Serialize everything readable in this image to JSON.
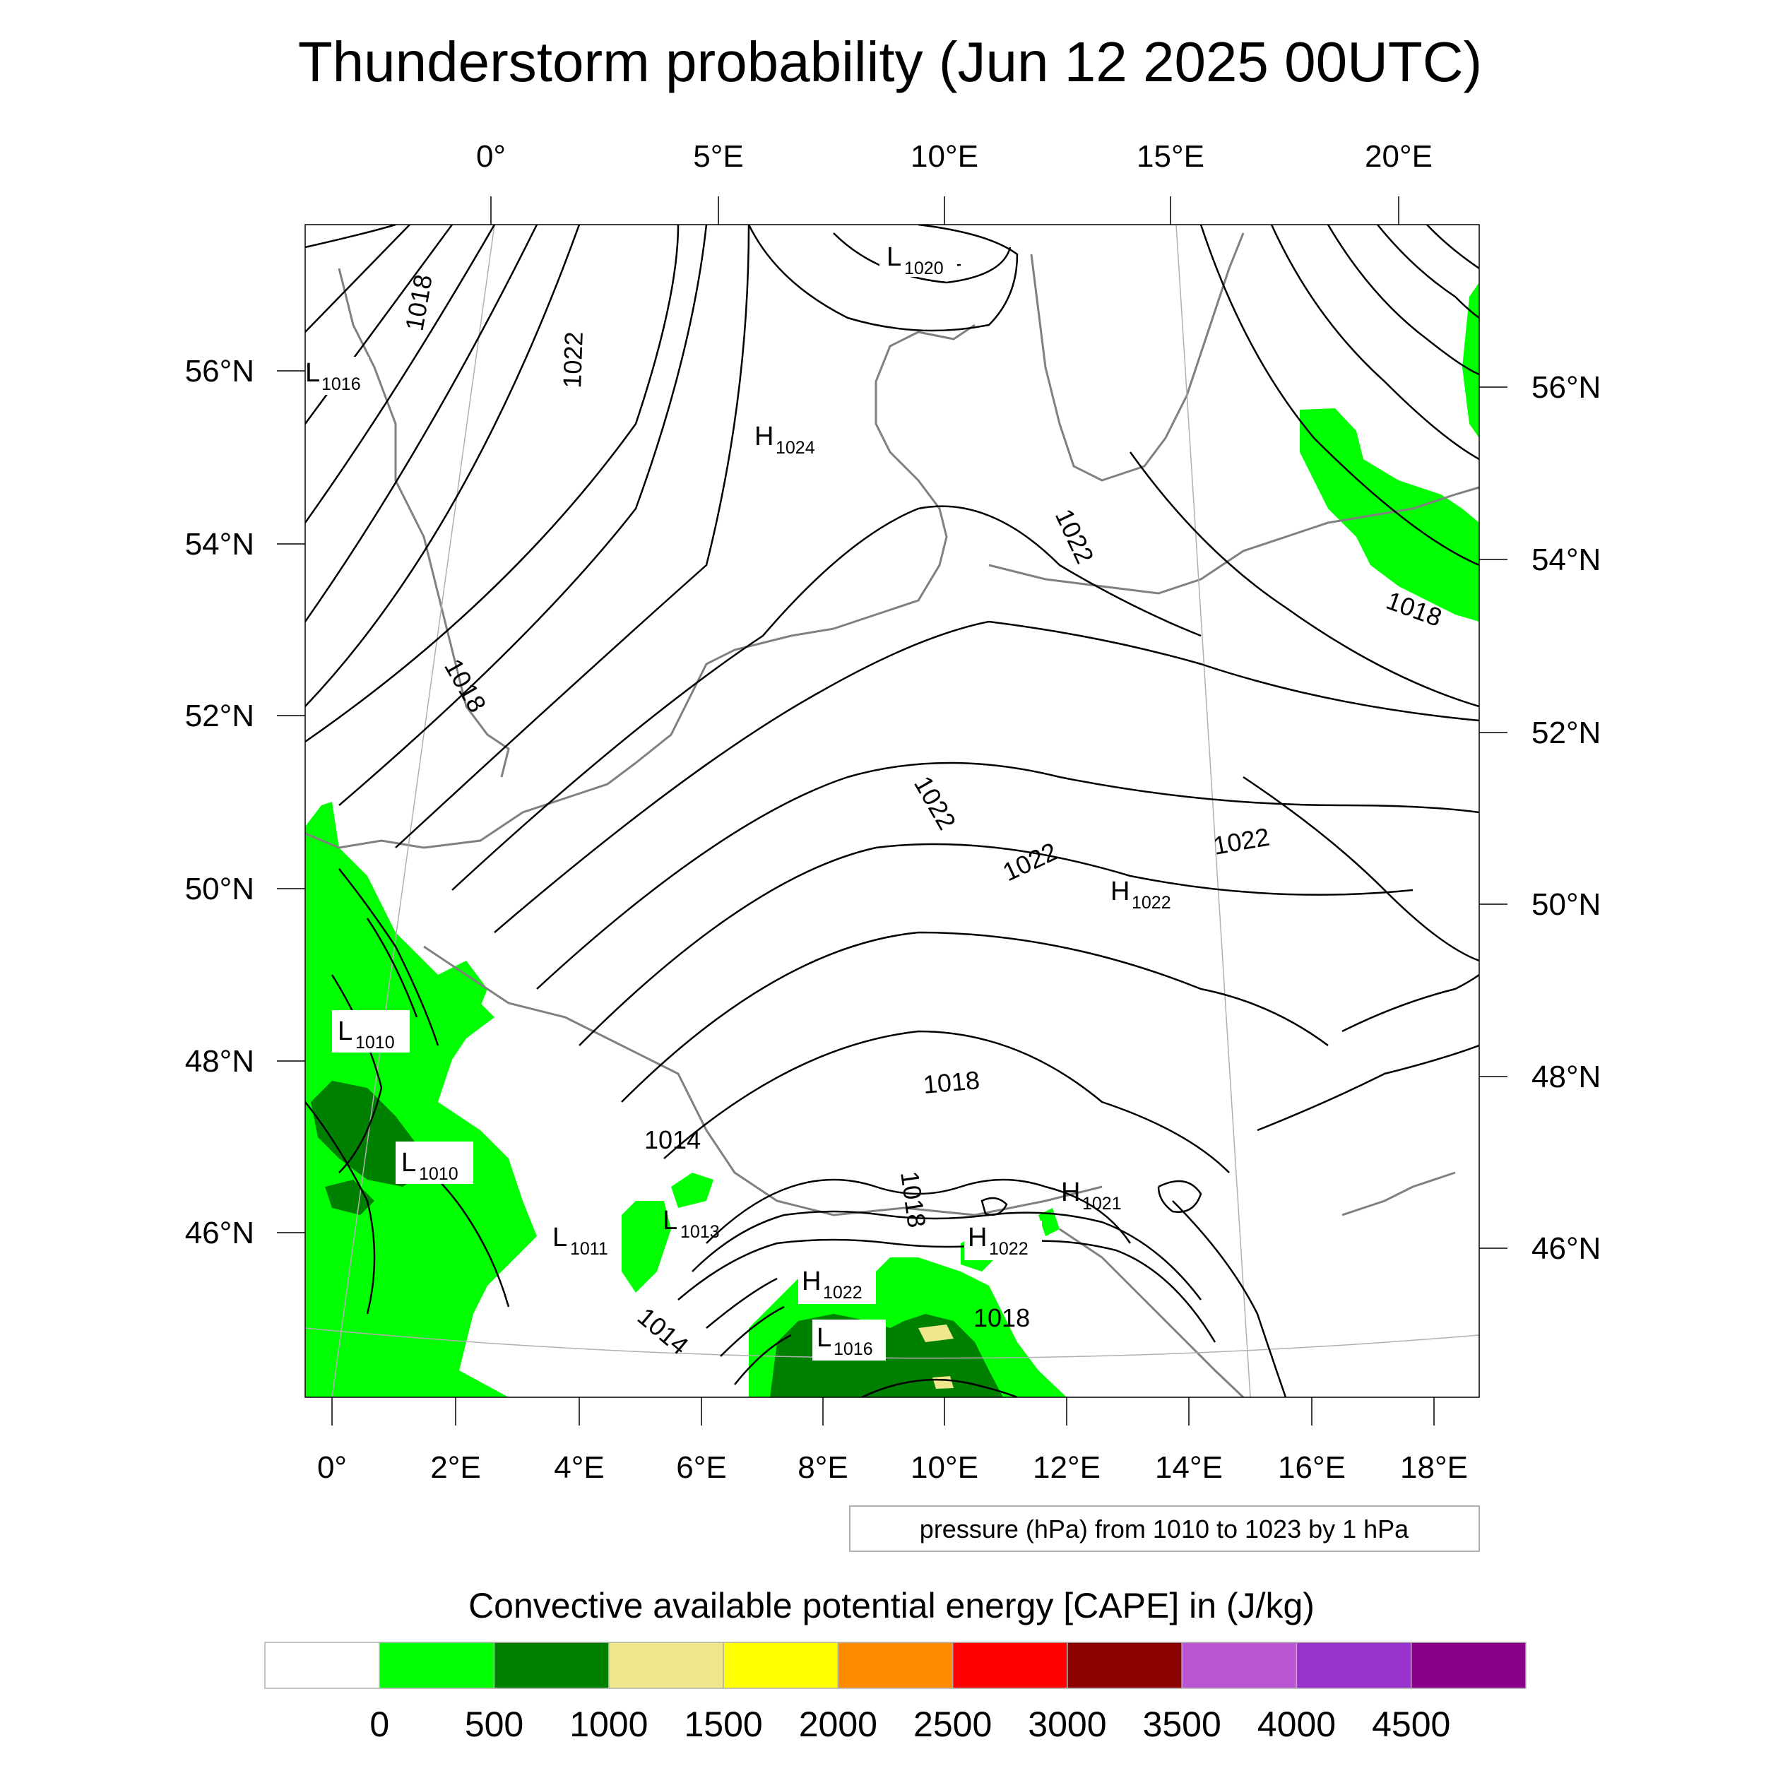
{
  "title": "Thunderstorm probability (Jun 12 2025 00UTC)",
  "axes": {
    "top_ticks": [
      "0°",
      "5°E",
      "10°E",
      "15°E",
      "20°E"
    ],
    "bottom_ticks": [
      "0°",
      "2°E",
      "4°E",
      "6°E",
      "8°E",
      "10°E",
      "12°E",
      "14°E",
      "16°E",
      "18°E"
    ],
    "left_ticks": [
      "56°N",
      "54°N",
      "52°N",
      "50°N",
      "48°N",
      "46°N"
    ],
    "right_ticks": [
      "56°N",
      "54°N",
      "52°N",
      "50°N",
      "48°N",
      "46°N"
    ]
  },
  "pressure_centers": [
    {
      "type": "L",
      "value": "1020"
    },
    {
      "type": "L",
      "value": "1016"
    },
    {
      "type": "H",
      "value": "1024"
    },
    {
      "type": "H",
      "value": "1022"
    },
    {
      "type": "L",
      "value": "1010"
    },
    {
      "type": "L",
      "value": "1010"
    },
    {
      "type": "L",
      "value": "1011"
    },
    {
      "type": "L",
      "value": "1013"
    },
    {
      "type": "H",
      "value": "1021"
    },
    {
      "type": "H",
      "value": "1022"
    },
    {
      "type": "H",
      "value": "1022"
    },
    {
      "type": "L",
      "value": "1016"
    }
  ],
  "contour_labels": [
    "1018",
    "1022",
    "1018",
    "1022",
    "1022",
    "1022",
    "1022",
    "1018",
    "1018",
    "1014",
    "1018",
    "1018",
    "1014"
  ],
  "contour_info": "pressure (hPa) from 1010 to 1023 by 1 hPa",
  "colorbar": {
    "title": "Convective available potential energy [CAPE] in (J/kg)",
    "colors": [
      "#ffffff",
      "#00ff00",
      "#008000",
      "#f0e68c",
      "#ffff00",
      "#ff8c00",
      "#ff0000",
      "#8b0000",
      "#ba55d3",
      "#9932cc",
      "#8b008b"
    ],
    "tick_labels": [
      "0",
      "500",
      "1000",
      "1500",
      "2000",
      "2500",
      "3000",
      "3500",
      "4000",
      "4500"
    ]
  },
  "colors": {
    "cape_low": "#00ff00",
    "cape_mid": "#008000",
    "cape_high": "#f0e68c",
    "coast": "#808080",
    "isobar": "#000000"
  }
}
